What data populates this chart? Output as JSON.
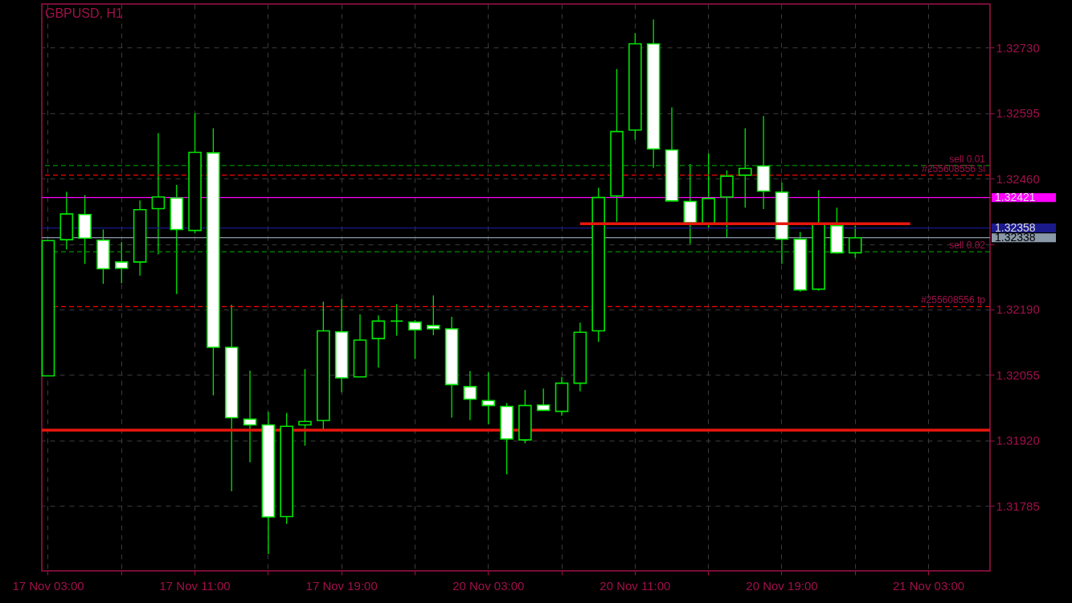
{
  "chart_data": {
    "type": "candlestick",
    "title": "GBPUSD, H1",
    "categories": [
      "17 Nov 03:00",
      null,
      null,
      null,
      null,
      null,
      null,
      null,
      "17 Nov 11:00",
      null,
      null,
      null,
      null,
      null,
      null,
      null,
      "17 Nov 19:00",
      null,
      null,
      null,
      null,
      null,
      null,
      null,
      "20 Nov 03:00",
      null,
      null,
      null,
      null,
      null,
      null,
      null,
      "20 Nov 11:00",
      null,
      null,
      null,
      null,
      null,
      null,
      null,
      "20 Nov 19:00",
      null,
      null,
      null,
      null,
      null,
      null,
      null,
      "21 Nov 03:00",
      null,
      null,
      null
    ],
    "ohlc": [
      [
        1.32053,
        1.32332,
        1.32053,
        1.32332
      ],
      [
        1.32334,
        1.32433,
        1.32314,
        1.32387
      ],
      [
        1.32386,
        1.32426,
        1.32284,
        1.32337
      ],
      [
        1.32333,
        1.32355,
        1.32243,
        1.32274
      ],
      [
        1.32288,
        1.32329,
        1.32244,
        1.32275
      ],
      [
        1.32288,
        1.32415,
        1.3226,
        1.32396
      ],
      [
        1.32398,
        1.32554,
        1.32304,
        1.32422
      ],
      [
        1.3242,
        1.32447,
        1.32222,
        1.32355
      ],
      [
        1.32353,
        1.32595,
        1.32347,
        1.32514
      ],
      [
        1.32513,
        1.32564,
        1.32013,
        1.32112
      ],
      [
        1.32112,
        1.322,
        1.31815,
        1.31967
      ],
      [
        1.31964,
        1.32064,
        1.31875,
        1.31952
      ],
      [
        1.31952,
        1.31979,
        1.31686,
        1.31762
      ],
      [
        1.31763,
        1.31977,
        1.31748,
        1.31949
      ],
      [
        1.31952,
        1.32067,
        1.31909,
        1.31959
      ],
      [
        1.31961,
        1.32206,
        1.31941,
        1.32146
      ],
      [
        1.32144,
        1.32212,
        1.32019,
        1.32049
      ],
      [
        1.32051,
        1.3218,
        1.32051,
        1.32127
      ],
      [
        1.3213,
        1.32178,
        1.3207,
        1.32166
      ],
      [
        1.32166,
        1.32201,
        1.32136,
        1.32166
      ],
      [
        1.32164,
        1.32168,
        1.32088,
        1.32148
      ],
      [
        1.32157,
        1.32219,
        1.32137,
        1.3215
      ],
      [
        1.3215,
        1.32175,
        1.31967,
        1.32035
      ],
      [
        1.32031,
        1.32063,
        1.31962,
        1.32005
      ],
      [
        1.32002,
        1.3206,
        1.31953,
        1.31992
      ],
      [
        1.3199,
        1.31997,
        1.3185,
        1.31923
      ],
      [
        1.31921,
        1.32024,
        1.31914,
        1.31992
      ],
      [
        1.31993,
        1.32027,
        1.31982,
        1.31982
      ],
      [
        1.3198,
        1.32051,
        1.31971,
        1.32038
      ],
      [
        1.32038,
        1.32163,
        1.32021,
        1.32143
      ],
      [
        1.32146,
        1.32441,
        1.32123,
        1.32421
      ],
      [
        1.32424,
        1.32686,
        1.32371,
        1.32557
      ],
      [
        1.3256,
        1.3276,
        1.3254,
        1.32738
      ],
      [
        1.32738,
        1.32788,
        1.32482,
        1.32521
      ],
      [
        1.32519,
        1.32607,
        1.32414,
        1.32414
      ],
      [
        1.32413,
        1.3249,
        1.32325,
        1.32369
      ],
      [
        1.32367,
        1.32512,
        1.32359,
        1.32419
      ],
      [
        1.32422,
        1.32477,
        1.32338,
        1.32465
      ],
      [
        1.32467,
        1.32564,
        1.324,
        1.32481
      ],
      [
        1.32486,
        1.32589,
        1.32397,
        1.32434
      ],
      [
        1.32432,
        1.32452,
        1.32284,
        1.32335
      ],
      [
        1.32335,
        1.3235,
        1.32227,
        1.3223
      ],
      [
        1.32232,
        1.32436,
        1.32229,
        1.32367
      ],
      [
        1.32363,
        1.324,
        1.32305,
        1.32307
      ],
      [
        1.32307,
        1.32363,
        1.32297,
        1.32338
      ],
      null,
      null,
      null,
      null,
      null,
      null,
      null
    ],
    "color": "#00e600",
    "colors": [
      "#000000",
      "#000000",
      "#ffffff",
      "#ffffff",
      "#ffffff",
      "#000000",
      "#000000",
      "#ffffff",
      "#000000",
      "#ffffff",
      "#ffffff",
      "#ffffff",
      "#ffffff",
      "#000000",
      "#000000",
      "#000000",
      "#ffffff",
      "#000000",
      "#000000",
      "#00e600",
      "#ffffff",
      "#ffffff",
      "#ffffff",
      "#ffffff",
      "#ffffff",
      "#ffffff",
      "#000000",
      "#ffffff",
      "#000000",
      "#000000",
      "#000000",
      "#000000",
      "#000000",
      "#ffffff",
      "#ffffff",
      "#ffffff",
      "#000000",
      "#000000",
      "#000000",
      "#ffffff",
      "#ffffff",
      "#ffffff",
      "#000000",
      "#ffffff",
      "#000000",
      null,
      null,
      null,
      null,
      null,
      null,
      null
    ],
    "series": [
      {
        "type": "line",
        "color": "#e8160c",
        "values": [
          null,
          null,
          null,
          null,
          null,
          null,
          null,
          null,
          null,
          null,
          null,
          null,
          null,
          null,
          null,
          null,
          null,
          null,
          null,
          null,
          null,
          null,
          null,
          null,
          null,
          null,
          null,
          null,
          null,
          1.32367,
          1.32367,
          1.32367,
          1.32367,
          1.32367,
          1.32367,
          1.32367,
          1.32367,
          1.32367,
          1.32367,
          1.32367,
          1.32367,
          1.32367,
          1.32367,
          1.32367,
          1.32367,
          1.32367,
          1.32367,
          1.32367,
          null,
          null,
          null,
          null
        ]
      }
    ],
    "ylim": [
      1.31651,
      1.3282
    ],
    "yticks": [
      {
        "value": 1.3273,
        "label": "1.32730"
      },
      1.32595,
      {
        "value": 1.3246,
        "label": "1.32460"
      },
      {
        "value": 1.32325,
        "label": null
      },
      {
        "value": 1.3219,
        "label": "1.32190"
      },
      1.32055,
      {
        "value": 1.3192,
        "label": "1.31920"
      },
      1.31785
    ],
    "grid": true,
    "ref_lines": [
      {
        "axis": "y",
        "value": 1.32487,
        "label": "sell 0.01",
        "color": "#008c00",
        "line_style": "dashed"
      },
      {
        "axis": "y",
        "value": 1.32467,
        "label": "#255608556 sl",
        "color": "#ff0000",
        "line_style": "dashed"
      },
      {
        "axis": "y",
        "value": 1.32421,
        "label": "1.32421",
        "color": "#ff00ff",
        "line_style": "solid"
      },
      {
        "axis": "y",
        "value": 1.32358,
        "label": "1.32358",
        "color": "#1a1a8c",
        "line_style": "solid"
      },
      {
        "axis": "y",
        "value": 1.32338,
        "label": "1.32338",
        "color": "#8a99a8",
        "line_style": "solid"
      },
      {
        "axis": "y",
        "value": 1.32309,
        "label": "sell 0.02",
        "color": "#008c00",
        "line_style": "dashed"
      },
      {
        "axis": "y",
        "value": 1.32196,
        "label": "#255608556 tp",
        "color": "#ff0000",
        "line_style": "dashed"
      },
      {
        "axis": "y",
        "value": 1.31941,
        "label": null,
        "color": "#e8160c",
        "line_style": "solid"
      }
    ]
  }
}
